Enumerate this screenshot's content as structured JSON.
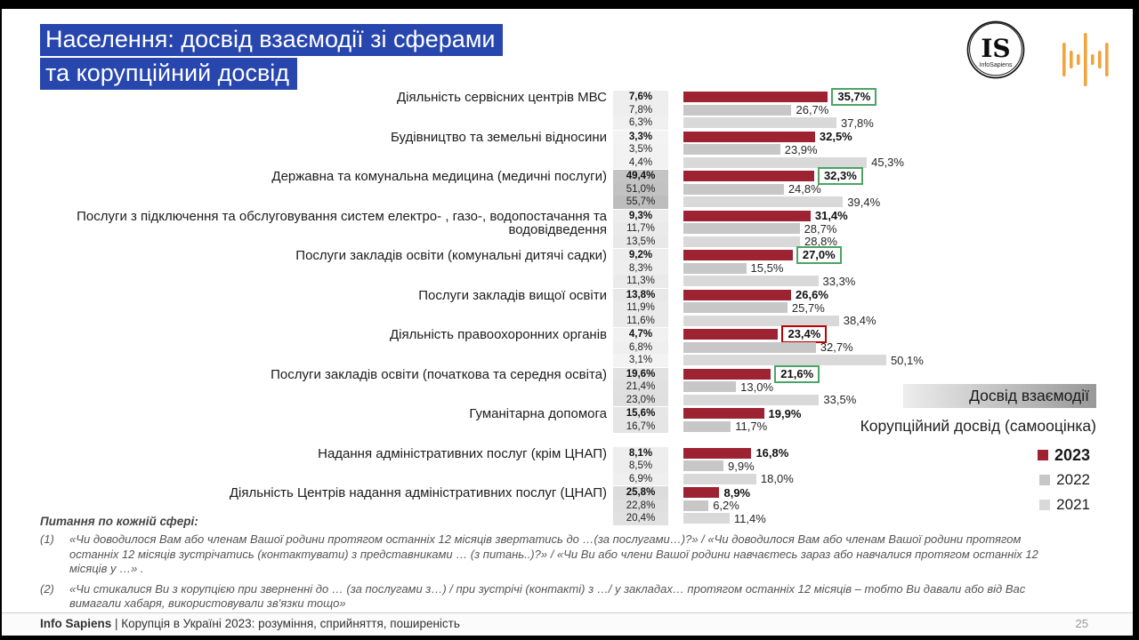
{
  "title": {
    "line1": "Населення: досвід взаємодії зі сферами",
    "line2": "та корупційний досвід"
  },
  "logos": {
    "is_initials": "IS",
    "is_name": "InfoSapiens",
    "soundbars_color": "#F2A43C"
  },
  "legend": {
    "experience_label": "Досвід взаємодії",
    "corruption_label": "Корупційний досвід (самооцінка)",
    "years": [
      {
        "label": "2023",
        "color": "#9d2333"
      },
      {
        "label": "2022",
        "color": "#c7c7c7"
      },
      {
        "label": "2021",
        "color": "#d9d9d9"
      }
    ]
  },
  "chart_data": {
    "type": "bar",
    "orientation": "horizontal",
    "unit": "percent",
    "title": "Населення: досвід взаємодії зі сферами та корупційний досвід",
    "series_years": [
      "2023",
      "2022",
      "2021"
    ],
    "colors": {
      "2023": "#9d2333",
      "2022": "#c7c7c7",
      "2021": "#d9d9d9"
    },
    "highlight_box_colors": {
      "green": "#4aa564",
      "red": "#c00000"
    },
    "xmax": 52,
    "left_column_meaning": "Досвід взаємодії (частка, що зверталась до сфери)",
    "bars_meaning": "Корупційний досвід (самооцінка)",
    "categories": [
      {
        "label": "Діяльність сервісних центрів МВС",
        "experience_values": [
          7.6,
          7.8,
          6.3
        ],
        "experience_labels": [
          "7,6%",
          "7,8%",
          "6,3%"
        ],
        "corruption_values": [
          35.7,
          26.7,
          37.8
        ],
        "corruption_labels": [
          "35,7%",
          "26,7%",
          "37,8%"
        ],
        "box": "green"
      },
      {
        "label": "Будівництво та земельні відносини",
        "experience_values": [
          3.3,
          3.5,
          4.4
        ],
        "experience_labels": [
          "3,3%",
          "3,5%",
          "4,4%"
        ],
        "corruption_values": [
          32.5,
          23.9,
          45.3
        ],
        "corruption_labels": [
          "32,5%",
          "23,9%",
          "45,3%"
        ],
        "box": null
      },
      {
        "label": "Державна та комунальна медицина (медичні послуги)",
        "experience_values": [
          49.4,
          51.0,
          55.7
        ],
        "experience_labels": [
          "49,4%",
          "51,0%",
          "55,7%"
        ],
        "corruption_values": [
          32.3,
          24.8,
          39.4
        ],
        "corruption_labels": [
          "32,3%",
          "24,8%",
          "39,4%"
        ],
        "box": "green"
      },
      {
        "label": "Послуги з підключення та обслуговування систем електро- , газо-, водопостачання та водовідведення",
        "experience_values": [
          9.3,
          11.7,
          13.5
        ],
        "experience_labels": [
          "9,3%",
          "11,7%",
          "13,5%"
        ],
        "corruption_values": [
          31.4,
          28.7,
          28.8
        ],
        "corruption_labels": [
          "31,4%",
          "28,7%",
          "28,8%"
        ],
        "box": null
      },
      {
        "label": "Послуги закладів освіти (комунальні дитячі садки)",
        "experience_values": [
          9.2,
          8.3,
          11.3
        ],
        "experience_labels": [
          "9,2%",
          "8,3%",
          "11,3%"
        ],
        "corruption_values": [
          27.0,
          15.5,
          33.3
        ],
        "corruption_labels": [
          "27,0%",
          "15,5%",
          "33,3%"
        ],
        "box": "green"
      },
      {
        "label": "Послуги закладів вищої освіти",
        "experience_values": [
          13.8,
          11.9,
          11.6
        ],
        "experience_labels": [
          "13,8%",
          "11,9%",
          "11,6%"
        ],
        "corruption_values": [
          26.6,
          25.7,
          38.4
        ],
        "corruption_labels": [
          "26,6%",
          "25,7%",
          "38,4%"
        ],
        "box": null
      },
      {
        "label": "Діяльність правоохоронних органів",
        "experience_values": [
          4.7,
          6.8,
          3.1
        ],
        "experience_labels": [
          "4,7%",
          "6,8%",
          "3,1%"
        ],
        "corruption_values": [
          23.4,
          32.7,
          50.1
        ],
        "corruption_labels": [
          "23,4%",
          "32,7%",
          "50,1%"
        ],
        "box": "red"
      },
      {
        "label": "Послуги закладів освіти (початкова та середня освіта)",
        "experience_values": [
          19.6,
          21.4,
          23.0
        ],
        "experience_labels": [
          "19,6%",
          "21,4%",
          "23,0%"
        ],
        "corruption_values": [
          21.6,
          13.0,
          33.5
        ],
        "corruption_labels": [
          "21,6%",
          "13,0%",
          "33,5%"
        ],
        "box": "green"
      },
      {
        "label": "Гуманітарна допомога",
        "experience_values": [
          15.6,
          16.7,
          null
        ],
        "experience_labels": [
          "15,6%",
          "16,7%",
          ""
        ],
        "corruption_values": [
          19.9,
          11.7,
          null
        ],
        "corruption_labels": [
          "19,9%",
          "11,7%",
          ""
        ],
        "box": null
      },
      {
        "label": "Надання адміністративних послуг  (крім ЦНАП)",
        "experience_values": [
          8.1,
          8.5,
          6.9
        ],
        "experience_labels": [
          "8,1%",
          "8,5%",
          "6,9%"
        ],
        "corruption_values": [
          16.8,
          9.9,
          18.0
        ],
        "corruption_labels": [
          "16,8%",
          "9,9%",
          "18,0%"
        ],
        "box": null
      },
      {
        "label": "Діяльність Центрів надання адміністративних послуг (ЦНАП)",
        "experience_values": [
          25.8,
          22.8,
          20.4
        ],
        "experience_labels": [
          "25,8%",
          "22,8%",
          "20,4%"
        ],
        "corruption_values": [
          8.9,
          6.2,
          11.4
        ],
        "corruption_labels": [
          "8,9%",
          "6,2%",
          "11,4%"
        ],
        "box": null
      }
    ]
  },
  "footnotes": {
    "heading": "Питання по кожній сфері:",
    "items": [
      {
        "num": "(1)",
        "text": "«Чи доводилося Вам або членам Вашої родини протягом останніх 12 місяців звертатись до …(за послугами…)?» / «Чи доводилося Вам або членам Вашої родини протягом останніх 12 місяців зустрічатись (контактувати) з представниками … (з питань..)?» / «Чи Ви або члени Вашої родини навчаєтесь зараз або навчалися протягом останніх 12 місяців у …» ."
      },
      {
        "num": "(2)",
        "text": "«Чи стикалися Ви з корупцією при зверненні до … (за послугами з…) / при зустрічі (контакті) з …/ у закладах… протягом останніх 12 місяців – тобто Ви давали або від Вас вимагали хабаря, використовували зв'язки тощо»"
      }
    ]
  },
  "footer": {
    "brand": "Info Sapiens",
    "rest": " | Корупція в Україні 2023: розуміння, сприйняття, поширеність",
    "page": "25"
  }
}
